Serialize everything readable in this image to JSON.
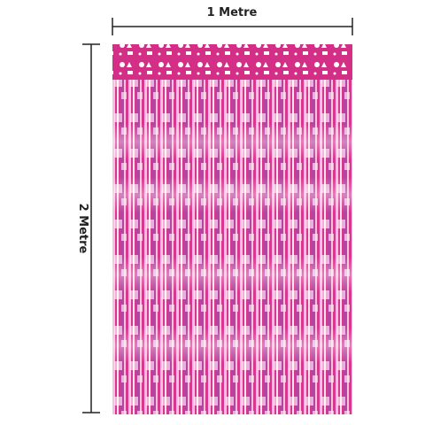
{
  "dimensions": {
    "width": "1 Metre",
    "height": "2 Metre"
  }
}
